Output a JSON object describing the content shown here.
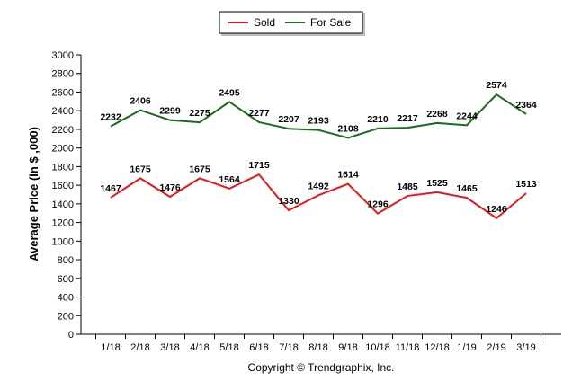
{
  "chart_data": {
    "type": "line",
    "categories": [
      "1/18",
      "2/18",
      "3/18",
      "4/18",
      "5/18",
      "6/18",
      "7/18",
      "8/18",
      "9/18",
      "10/18",
      "11/18",
      "12/18",
      "1/19",
      "2/19",
      "3/19"
    ],
    "series": [
      {
        "name": "Sold",
        "color": "#e8161b",
        "values": [
          1467,
          1675,
          1476,
          1675,
          1564,
          1715,
          1330,
          1492,
          1614,
          1296,
          1485,
          1525,
          1465,
          1246,
          1513
        ]
      },
      {
        "name": "For Sale",
        "color": "#1a6b1a",
        "values": [
          2232,
          2406,
          2299,
          2275,
          2495,
          2277,
          2207,
          2193,
          2108,
          2210,
          2217,
          2268,
          2244,
          2574,
          2364
        ]
      }
    ],
    "ylabel": "Average Price (in $ ,000)",
    "xlabel": "",
    "ylim": [
      0,
      3000
    ],
    "ytick_step": 200,
    "grid": false,
    "legend_position": "top-center",
    "show_data_labels": true
  },
  "footer": "Copyright © Trendgraphix, Inc."
}
